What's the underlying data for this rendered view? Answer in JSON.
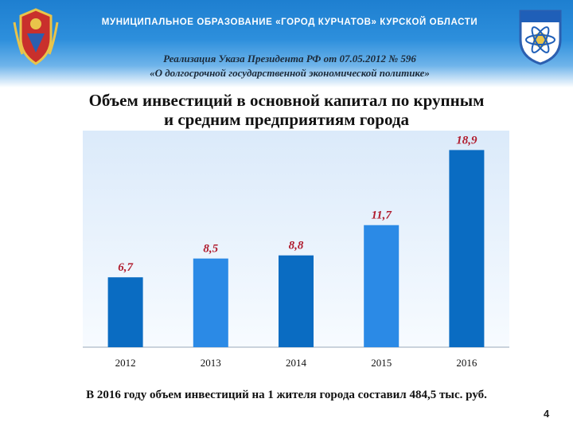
{
  "header": {
    "org_title": "МУНИЦИПАЛЬНОЕ ОБРАЗОВАНИЕ «ГОРОД КУРЧАТОВ» КУРСКОЙ ОБЛАСТИ",
    "subtitle_line1": "Реализация Указа Президента РФ от 07.05.2012 № 596",
    "subtitle_line2": "«О долгосрочной государственной экономической политике»"
  },
  "chart_data": {
    "type": "bar",
    "title_line1": "Объем инвестиций в основной капитал по крупным",
    "title_line2": "и средним предприятиям города",
    "categories": [
      "2012",
      "2013",
      "2014",
      "2015",
      "2016"
    ],
    "values": [
      6.7,
      8.5,
      8.8,
      11.7,
      18.9
    ],
    "value_labels": [
      "6,7",
      "8,5",
      "8,8",
      "11,7",
      "18,9"
    ],
    "ylim": [
      0,
      20
    ],
    "grid": false,
    "bar_colors": [
      "#0a6cc2",
      "#2b8ae6",
      "#0a6cc2",
      "#2b8ae6",
      "#0a6cc2"
    ],
    "label_color": "#b01c2e"
  },
  "footer": {
    "note": "В 2016 году объем инвестиций на 1 жителя города составил 484,5 тыс. руб.",
    "page_number": "4"
  }
}
